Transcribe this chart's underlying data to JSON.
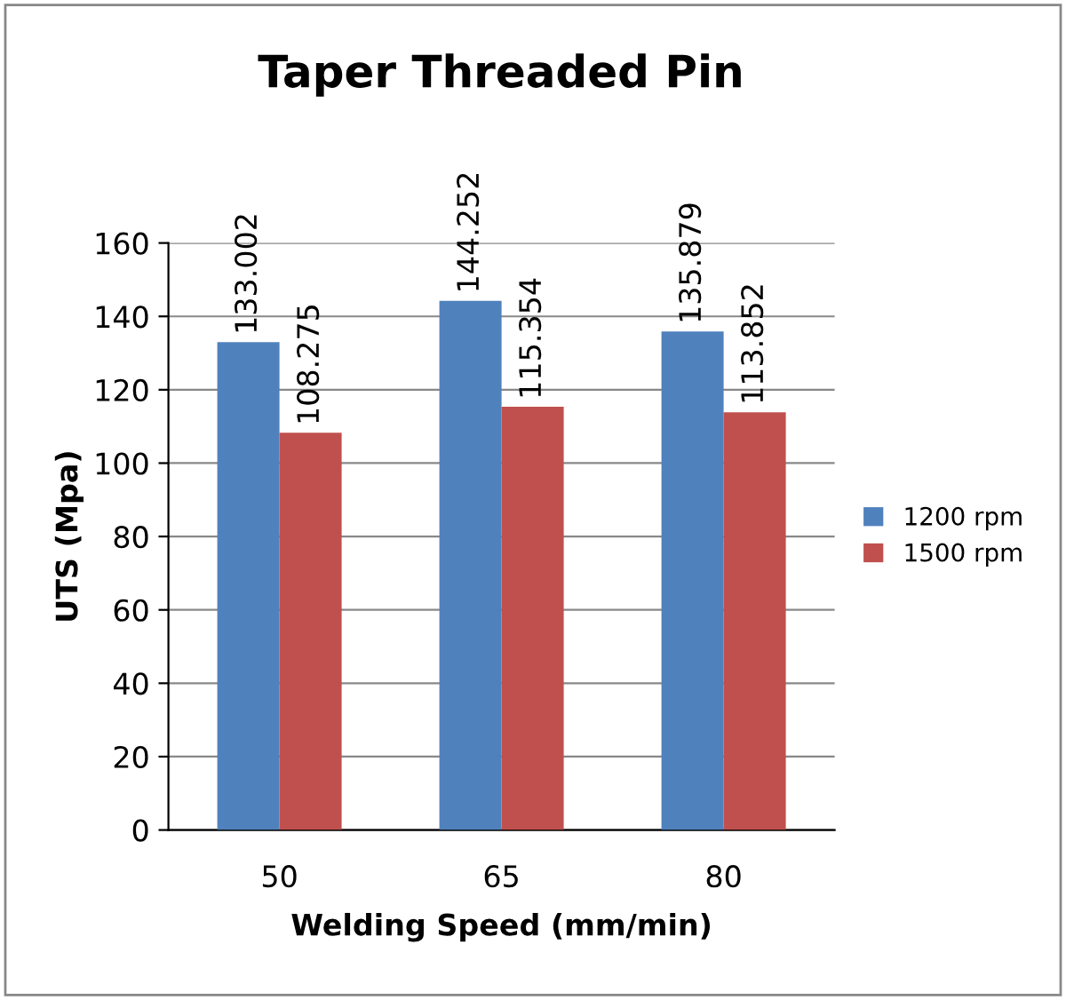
{
  "chart_data": {
    "type": "bar",
    "title": "Taper Threaded Pin",
    "xlabel": "Welding Speed (mm/min)",
    "ylabel": "UTS (Mpa)",
    "categories": [
      "50",
      "65",
      "80"
    ],
    "series": [
      {
        "name": "1200 rpm",
        "color": "#4f81bd",
        "values": [
          133.002,
          144.252,
          135.879
        ]
      },
      {
        "name": "1500 rpm",
        "color": "#c0504d",
        "values": [
          108.275,
          115.354,
          113.852
        ]
      }
    ],
    "ylim": [
      0,
      160
    ],
    "yticks": [
      0,
      20,
      40,
      60,
      80,
      100,
      120,
      140,
      160
    ],
    "grid": "y",
    "legend": "right",
    "data_labels": true
  }
}
